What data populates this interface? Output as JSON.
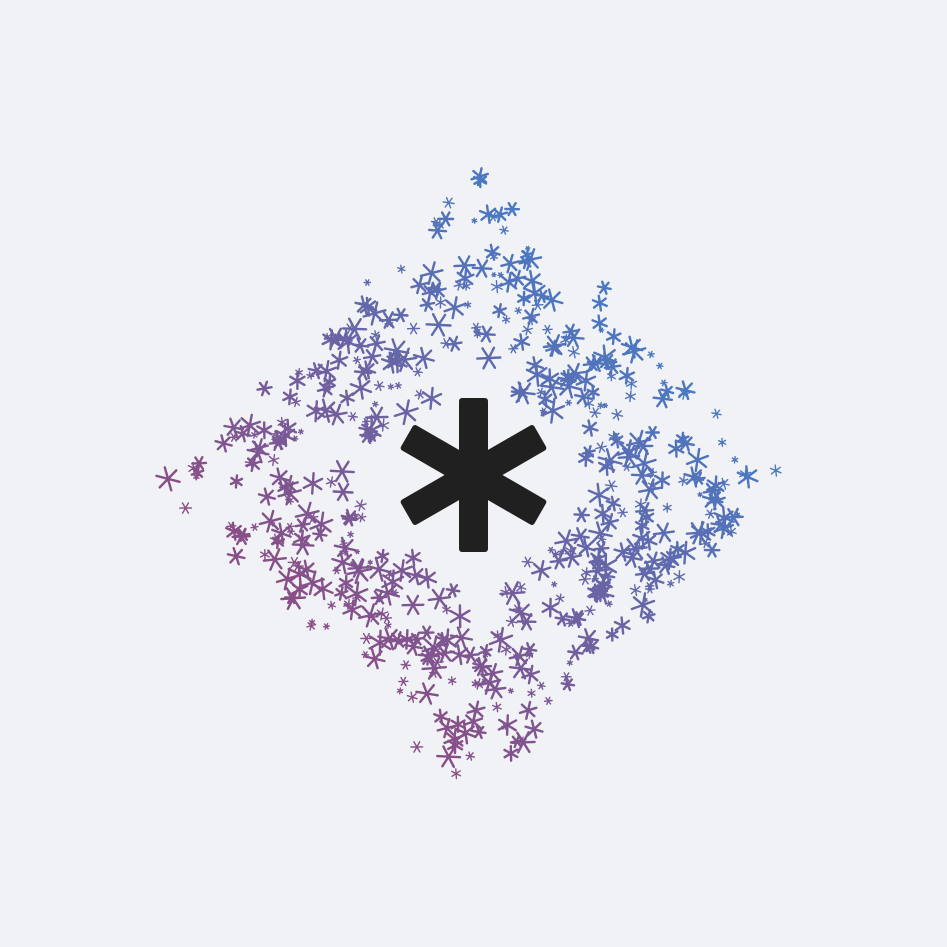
{
  "scene": {
    "background_color": "#f0f2f5",
    "center_icon": "asterisk-icon",
    "center_icon_color": "#202020",
    "particle_icon": "asterisk-icon",
    "gradient": {
      "top_right_color": "#4a78c2",
      "bottom_left_color": "#8a4e86"
    },
    "particle_shape": "diamond ring of scattered asterisks"
  }
}
